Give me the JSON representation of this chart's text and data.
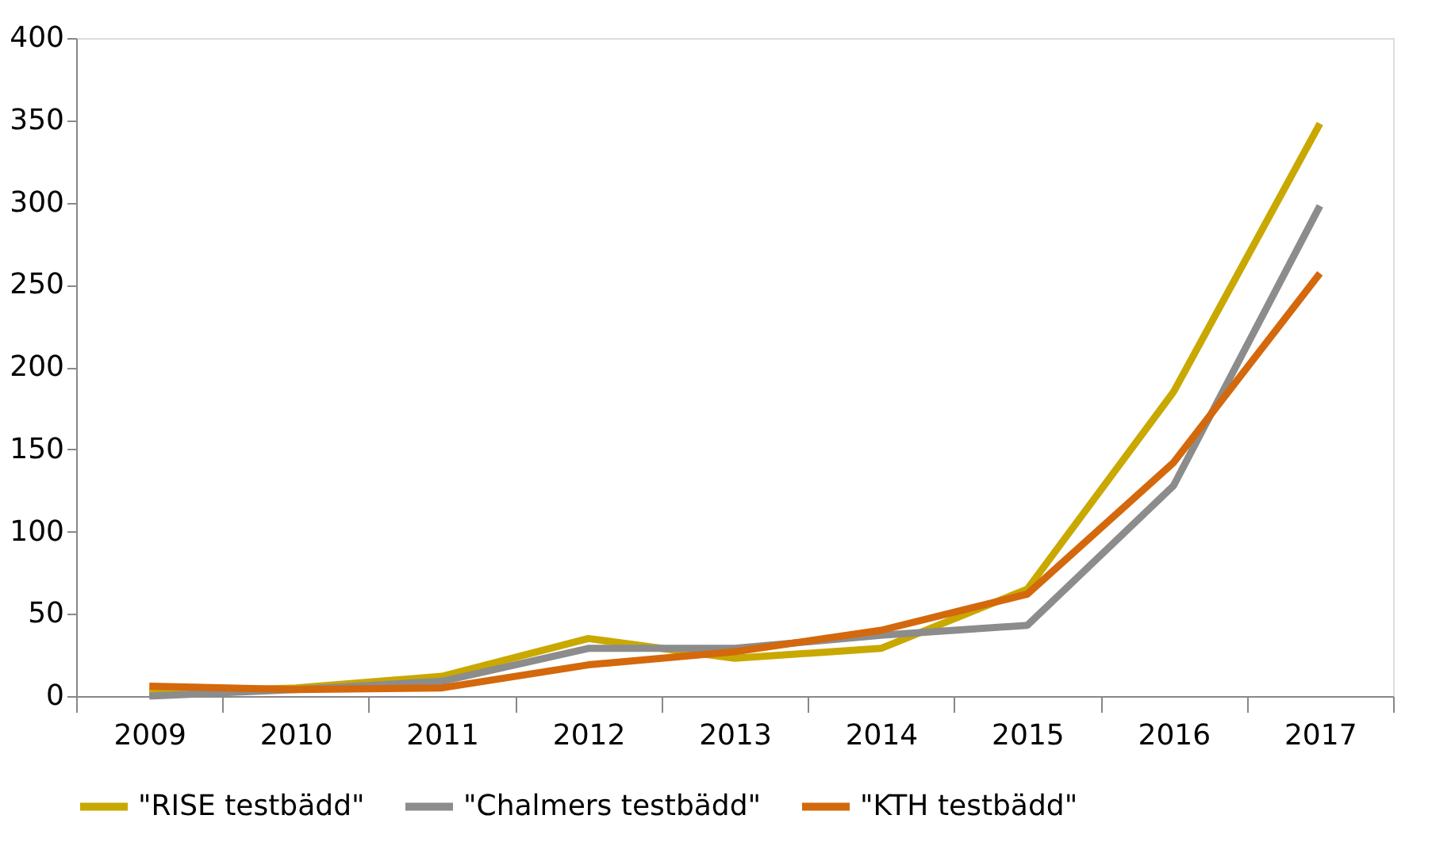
{
  "chart_data": {
    "type": "line",
    "categories": [
      "2009",
      "2010",
      "2011",
      "2012",
      "2013",
      "2014",
      "2015",
      "2016",
      "2017"
    ],
    "series": [
      {
        "name": "\"RISE testbädd\"",
        "color": "#c9a800",
        "values": [
          2,
          5,
          12,
          35,
          23,
          29,
          65,
          185,
          348
        ]
      },
      {
        "name": "\"Chalmers testbädd\"",
        "color": "#8c8c8c",
        "values": [
          0,
          4,
          9,
          29,
          29,
          37,
          43,
          128,
          298
        ]
      },
      {
        "name": "\"KTH testbädd\"",
        "color": "#d4680c",
        "values": [
          6,
          4,
          5,
          19,
          27,
          40,
          62,
          142,
          257
        ]
      }
    ],
    "ylim": [
      0,
      400
    ],
    "yticks": [
      0,
      50,
      100,
      150,
      200,
      250,
      300,
      350,
      400
    ],
    "grid": false,
    "legend": "bottom",
    "marker": "none",
    "line_style": "solid"
  }
}
